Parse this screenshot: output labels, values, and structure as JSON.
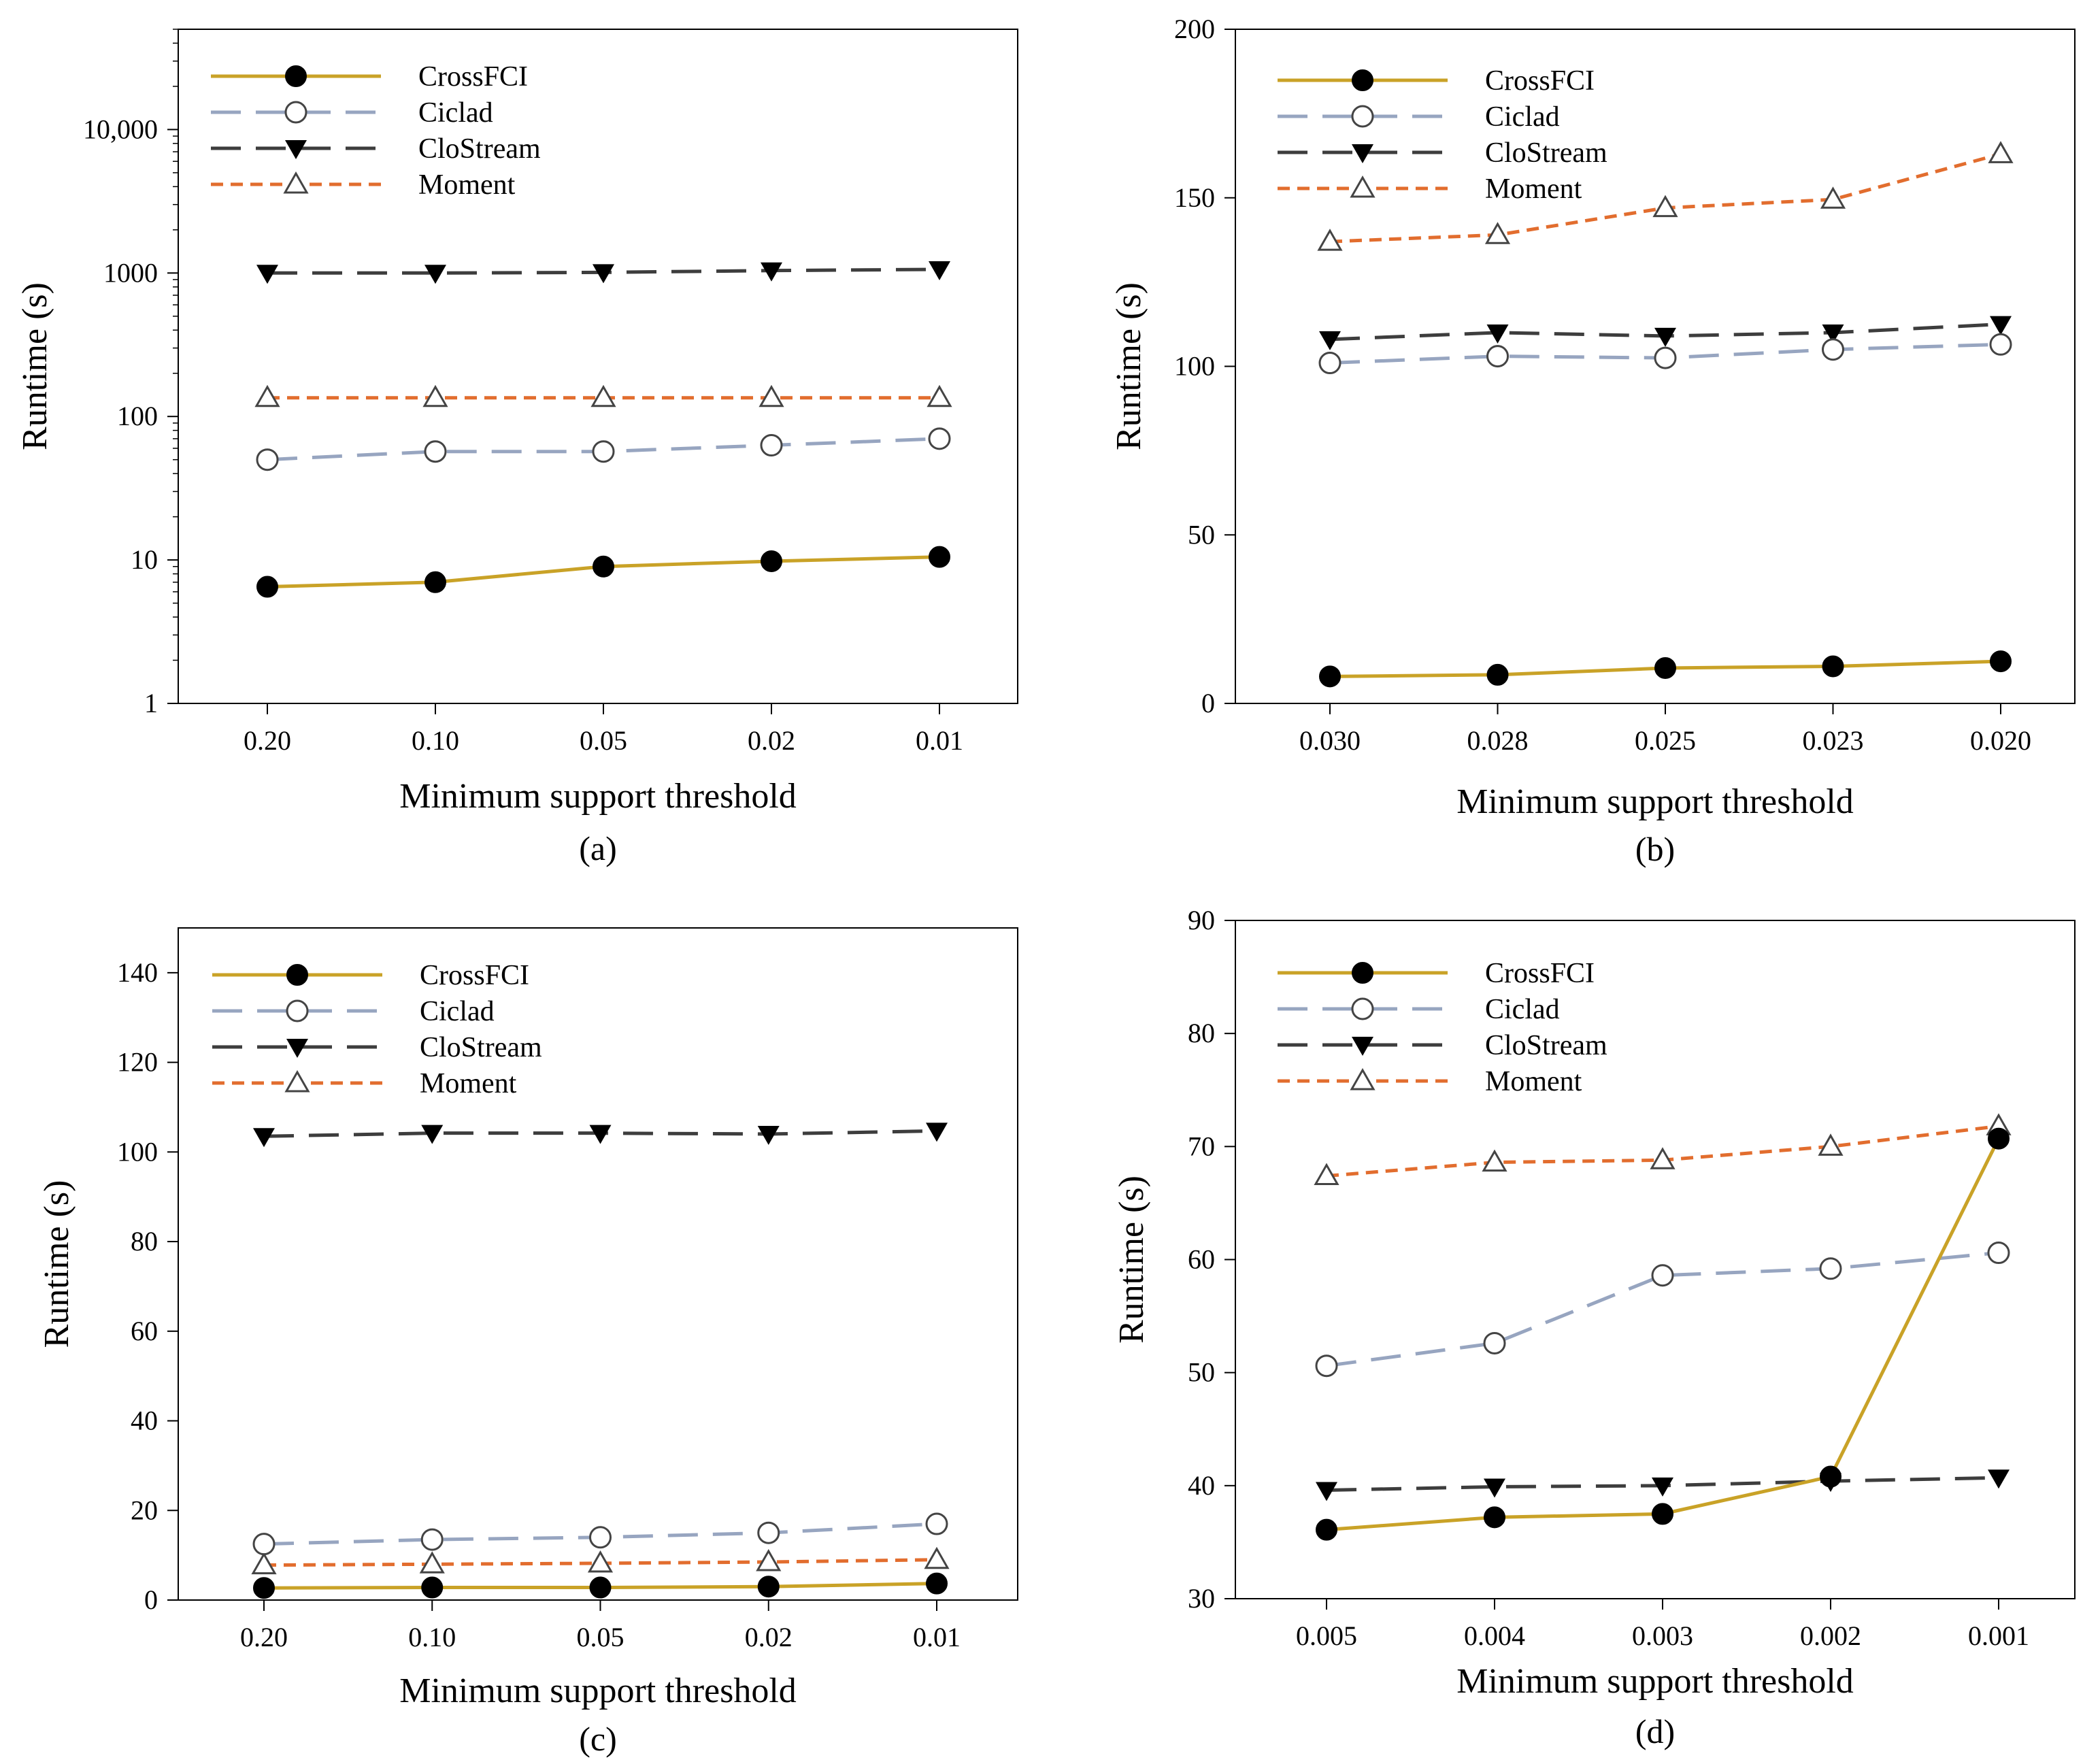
{
  "chart_data": [
    {
      "type": "line",
      "panel_label": "(a)",
      "title": "",
      "xlabel": "Minimum support threshold",
      "ylabel": "Runtime (s)",
      "yscale": "log",
      "ylim": [
        1,
        50000
      ],
      "categories": [
        "0.20",
        "0.10",
        "0.05",
        "0.02",
        "0.01"
      ],
      "yticks": [
        1,
        10,
        100,
        1000,
        10000
      ],
      "ytick_labels": [
        "1",
        "10",
        "100",
        "1000",
        "10,000"
      ],
      "series": [
        {
          "name": "CrossFCI",
          "values": [
            6.5,
            7,
            9,
            9.8,
            10.5
          ]
        },
        {
          "name": "Ciclad",
          "values": [
            50,
            57,
            57,
            63,
            70
          ]
        },
        {
          "name": "CloStream",
          "values": [
            1000,
            1000,
            1010,
            1040,
            1060
          ]
        },
        {
          "name": "Moment",
          "values": [
            135,
            135,
            135,
            135,
            135
          ]
        }
      ]
    },
    {
      "type": "line",
      "panel_label": "(b)",
      "title": "",
      "xlabel": "Minimum support threshold",
      "ylabel": "Runtime (s)",
      "yscale": "linear",
      "ylim": [
        0,
        200
      ],
      "categories": [
        "0.030",
        "0.028",
        "0.025",
        "0.023",
        "0.020"
      ],
      "yticks": [
        0,
        50,
        100,
        150,
        200
      ],
      "ytick_labels": [
        "0",
        "50",
        "100",
        "150",
        "200"
      ],
      "series": [
        {
          "name": "CrossFCI",
          "values": [
            8,
            8.5,
            10.5,
            11,
            12.5
          ]
        },
        {
          "name": "Ciclad",
          "values": [
            101,
            103,
            102.5,
            105,
            106.5
          ]
        },
        {
          "name": "CloStream",
          "values": [
            108,
            110,
            109,
            110,
            112.5
          ]
        },
        {
          "name": "Moment",
          "values": [
            137,
            139,
            147,
            149.5,
            163
          ]
        }
      ]
    },
    {
      "type": "line",
      "panel_label": "(c)",
      "title": "",
      "xlabel": "Minimum support threshold",
      "ylabel": "Runtime (s)",
      "yscale": "linear",
      "ylim": [
        0,
        150
      ],
      "categories": [
        "0.20",
        "0.10",
        "0.05",
        "0.02",
        "0.01"
      ],
      "yticks": [
        0,
        20,
        40,
        60,
        80,
        100,
        120,
        140
      ],
      "ytick_labels": [
        "0",
        "20",
        "40",
        "60",
        "80",
        "100",
        "120",
        "140"
      ],
      "series": [
        {
          "name": "CrossFCI",
          "values": [
            2.7,
            2.8,
            2.8,
            3,
            3.7
          ]
        },
        {
          "name": "Ciclad",
          "values": [
            12.5,
            13.5,
            14,
            15,
            17
          ]
        },
        {
          "name": "CloStream",
          "values": [
            103.5,
            104.2,
            104.2,
            104,
            104.7
          ]
        },
        {
          "name": "Moment",
          "values": [
            7.8,
            8,
            8.2,
            8.5,
            9
          ]
        }
      ]
    },
    {
      "type": "line",
      "panel_label": "(d)",
      "title": "",
      "xlabel": "Minimum support threshold",
      "ylabel": "Runtime (s)",
      "yscale": "linear",
      "ylim": [
        30,
        90
      ],
      "categories": [
        "0.005",
        "0.004",
        "0.003",
        "0.002",
        "0.001"
      ],
      "yticks": [
        30,
        40,
        50,
        60,
        70,
        80,
        90
      ],
      "ytick_labels": [
        "30",
        "40",
        "50",
        "60",
        "70",
        "80",
        "90"
      ],
      "series": [
        {
          "name": "CrossFCI",
          "values": [
            36.1,
            37.2,
            37.5,
            40.8,
            70.7
          ]
        },
        {
          "name": "Ciclad",
          "values": [
            50.6,
            52.6,
            58.6,
            59.2,
            60.6
          ]
        },
        {
          "name": "CloStream",
          "values": [
            39.6,
            39.9,
            40,
            40.4,
            40.7
          ]
        },
        {
          "name": "Moment",
          "values": [
            67.4,
            68.6,
            68.8,
            70,
            71.8
          ]
        }
      ]
    }
  ],
  "series_styles": {
    "CrossFCI": {
      "color": "#c9a227",
      "dash": "",
      "marker": "circle-filled"
    },
    "Ciclad": {
      "color": "#97a5c0",
      "dash": "44 22",
      "marker": "circle-open"
    },
    "CloStream": {
      "color": "#3d3d3d",
      "dash": "44 22",
      "marker": "triangle-down-filled"
    },
    "Moment": {
      "color": "#e26d2e",
      "dash": "18 11",
      "marker": "triangle-up-open"
    }
  }
}
